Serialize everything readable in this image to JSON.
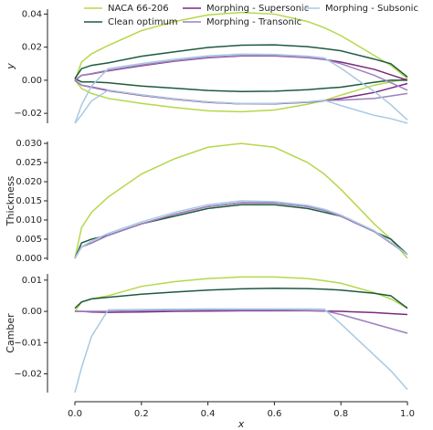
{
  "chart_data": [
    {
      "type": "line",
      "ylabel": "y",
      "legend": "upper center",
      "x": [
        0,
        0.02,
        0.05,
        0.1,
        0.2,
        0.3,
        0.4,
        0.5,
        0.6,
        0.7,
        0.75,
        0.8,
        0.9,
        0.95,
        1.0
      ],
      "xlim": [
        0,
        1
      ],
      "ylim": [
        -0.026,
        0.043
      ],
      "yticks": [
        {
          "value": -0.02,
          "label": "−0.02"
        },
        {
          "value": 0,
          "label": "0.00"
        },
        {
          "value": 0.02,
          "label": "0.02"
        },
        {
          "value": 0.04,
          "label": "0.04"
        }
      ],
      "series": [
        {
          "name": "NACA 66-206",
          "color": "#b5d84a",
          "upper": [
            0,
            0.011,
            0.016,
            0.021,
            0.03,
            0.0355,
            0.0395,
            0.041,
            0.04,
            0.0355,
            0.0318,
            0.027,
            0.015,
            0.009,
            0.001
          ],
          "lower": [
            0,
            -0.005,
            -0.008,
            -0.011,
            -0.014,
            -0.0165,
            -0.0185,
            -0.019,
            -0.018,
            -0.0145,
            -0.0122,
            -0.009,
            -0.003,
            -0.001,
            0.001
          ]
        },
        {
          "name": "Clean optimum",
          "color": "#1e5a3e",
          "upper": [
            0.001,
            0.007,
            0.009,
            0.0105,
            0.0145,
            0.0172,
            0.0198,
            0.0212,
            0.0214,
            0.0203,
            0.0191,
            0.0178,
            0.0128,
            0.01,
            0.002
          ],
          "lower": [
            0.001,
            -0.001,
            -0.001,
            -0.0015,
            -0.0035,
            -0.0048,
            -0.0062,
            -0.0068,
            -0.0066,
            -0.0057,
            -0.0049,
            -0.0042,
            -0.0012,
            0,
            0
          ]
        },
        {
          "name": "Morphing - Supersonic",
          "color": "#7a2a7e",
          "upper": [
            0,
            0.003,
            0.0038,
            0.0057,
            0.0088,
            0.0115,
            0.0136,
            0.0147,
            0.0147,
            0.0137,
            0.0126,
            0.011,
            0.0066,
            0.0033,
            0
          ],
          "lower": [
            0,
            -0.003,
            -0.0042,
            -0.0063,
            -0.0092,
            -0.0115,
            -0.0134,
            -0.0143,
            -0.0143,
            -0.0133,
            -0.0124,
            -0.011,
            -0.0074,
            -0.0047,
            -0.002
          ]
        },
        {
          "name": "Morphing - Transonic",
          "color": "#9c80c0",
          "upper": [
            0,
            0.003,
            0.004,
            0.006,
            0.0092,
            0.0118,
            0.0139,
            0.0149,
            0.0149,
            0.0138,
            0.0127,
            0.01,
            0.003,
            -0.0015,
            -0.006
          ],
          "lower": [
            0,
            -0.003,
            -0.004,
            -0.006,
            -0.0088,
            -0.0112,
            -0.0131,
            -0.0141,
            -0.0141,
            -0.0132,
            -0.0123,
            -0.012,
            -0.011,
            -0.0095,
            -0.008
          ]
        },
        {
          "name": "Morphing - Subsonic",
          "color": "#a9c9e2",
          "upper": [
            -0.026,
            -0.015,
            -0.0035,
            0.007,
            0.0101,
            0.0127,
            0.0148,
            0.0158,
            0.0156,
            0.0146,
            0.0135,
            0.0073,
            -0.0068,
            -0.0148,
            -0.024
          ],
          "lower": [
            -0.026,
            -0.021,
            -0.0125,
            -0.006,
            -0.0089,
            -0.0113,
            -0.0132,
            -0.0142,
            -0.014,
            -0.013,
            -0.0121,
            -0.0153,
            -0.0212,
            -0.0232,
            -0.026
          ]
        }
      ]
    },
    {
      "type": "line",
      "ylabel": "Thickness",
      "x": [
        0,
        0.02,
        0.05,
        0.1,
        0.2,
        0.3,
        0.4,
        0.5,
        0.6,
        0.7,
        0.75,
        0.8,
        0.9,
        0.95,
        1.0
      ],
      "xlim": [
        0,
        1
      ],
      "ylim": [
        -0.0005,
        0.0305
      ],
      "yticks": [
        {
          "value": 0,
          "label": "0.000"
        },
        {
          "value": 0.005,
          "label": "0.005"
        },
        {
          "value": 0.01,
          "label": "0.010"
        },
        {
          "value": 0.015,
          "label": "0.015"
        },
        {
          "value": 0.02,
          "label": "0.020"
        },
        {
          "value": 0.025,
          "label": "0.025"
        },
        {
          "value": 0.03,
          "label": "0.030"
        }
      ],
      "series": [
        {
          "color": "#b5d84a",
          "values": [
            0,
            0.008,
            0.012,
            0.016,
            0.022,
            0.026,
            0.029,
            0.03,
            0.029,
            0.025,
            0.022,
            0.018,
            0.009,
            0.005,
            0
          ]
        },
        {
          "color": "#1e5a3e",
          "values": [
            0,
            0.004,
            0.005,
            0.006,
            0.009,
            0.011,
            0.013,
            0.014,
            0.014,
            0.013,
            0.012,
            0.011,
            0.007,
            0.005,
            0.001
          ]
        },
        {
          "color": "#7a2a7e",
          "values": [
            0,
            0.003,
            0.004,
            0.006,
            0.009,
            0.0115,
            0.0135,
            0.0145,
            0.0145,
            0.0135,
            0.0125,
            0.011,
            0.007,
            0.004,
            0.001
          ]
        },
        {
          "color": "#9c80c0",
          "values": [
            0,
            0.003,
            0.004,
            0.006,
            0.009,
            0.0115,
            0.0135,
            0.0145,
            0.0145,
            0.0135,
            0.0125,
            0.011,
            0.007,
            0.004,
            0.001
          ]
        },
        {
          "color": "#a9c9e2",
          "values": [
            0,
            0.003,
            0.0045,
            0.0065,
            0.0095,
            0.012,
            0.014,
            0.015,
            0.0148,
            0.0138,
            0.0128,
            0.0113,
            0.0072,
            0.0042,
            0.001
          ]
        }
      ]
    },
    {
      "type": "line",
      "ylabel": "Camber",
      "xlabel": "x",
      "x": [
        0,
        0.02,
        0.05,
        0.1,
        0.2,
        0.3,
        0.4,
        0.5,
        0.6,
        0.7,
        0.75,
        0.8,
        0.9,
        0.95,
        1.0
      ],
      "xlim": [
        0,
        1
      ],
      "ylim": [
        -0.026,
        0.012
      ],
      "xticks": [
        {
          "value": 0,
          "label": "0.0"
        },
        {
          "value": 0.2,
          "label": "0.2"
        },
        {
          "value": 0.4,
          "label": "0.4"
        },
        {
          "value": 0.6,
          "label": "0.6"
        },
        {
          "value": 0.8,
          "label": "0.8"
        },
        {
          "value": 1,
          "label": "1.0"
        }
      ],
      "yticks": [
        {
          "value": -0.02,
          "label": "−0.02"
        },
        {
          "value": -0.01,
          "label": "−0.01"
        },
        {
          "value": 0,
          "label": "0.00"
        },
        {
          "value": 0.01,
          "label": "0.01"
        }
      ],
      "series": [
        {
          "color": "#b5d84a",
          "values": [
            0,
            0.003,
            0.004,
            0.005,
            0.008,
            0.0095,
            0.0105,
            0.011,
            0.011,
            0.0105,
            0.0098,
            0.009,
            0.006,
            0.004,
            0.001
          ]
        },
        {
          "color": "#1e5a3e",
          "values": [
            0.001,
            0.003,
            0.004,
            0.0045,
            0.0055,
            0.0062,
            0.0068,
            0.0072,
            0.0074,
            0.0073,
            0.0071,
            0.0068,
            0.0058,
            0.005,
            0.001
          ]
        },
        {
          "color": "#7a2a7e",
          "values": [
            0,
            0,
            -0.0002,
            -0.0003,
            -0.0002,
            0,
            0.0001,
            0.0002,
            0.0002,
            0.0002,
            0.0001,
            0,
            -0.0004,
            -0.0007,
            -0.001
          ]
        },
        {
          "color": "#9c80c0",
          "values": [
            0,
            0,
            0,
            0,
            0.0002,
            0.0003,
            0.0004,
            0.0004,
            0.0004,
            0.0003,
            0.0002,
            -0.001,
            -0.004,
            -0.0055,
            -0.007
          ]
        },
        {
          "color": "#a9c9e2",
          "values": [
            -0.026,
            -0.018,
            -0.008,
            0.0005,
            0.0006,
            0.0007,
            0.0008,
            0.0008,
            0.0008,
            0.0008,
            0.0007,
            -0.004,
            -0.014,
            -0.019,
            -0.025
          ]
        }
      ]
    }
  ]
}
